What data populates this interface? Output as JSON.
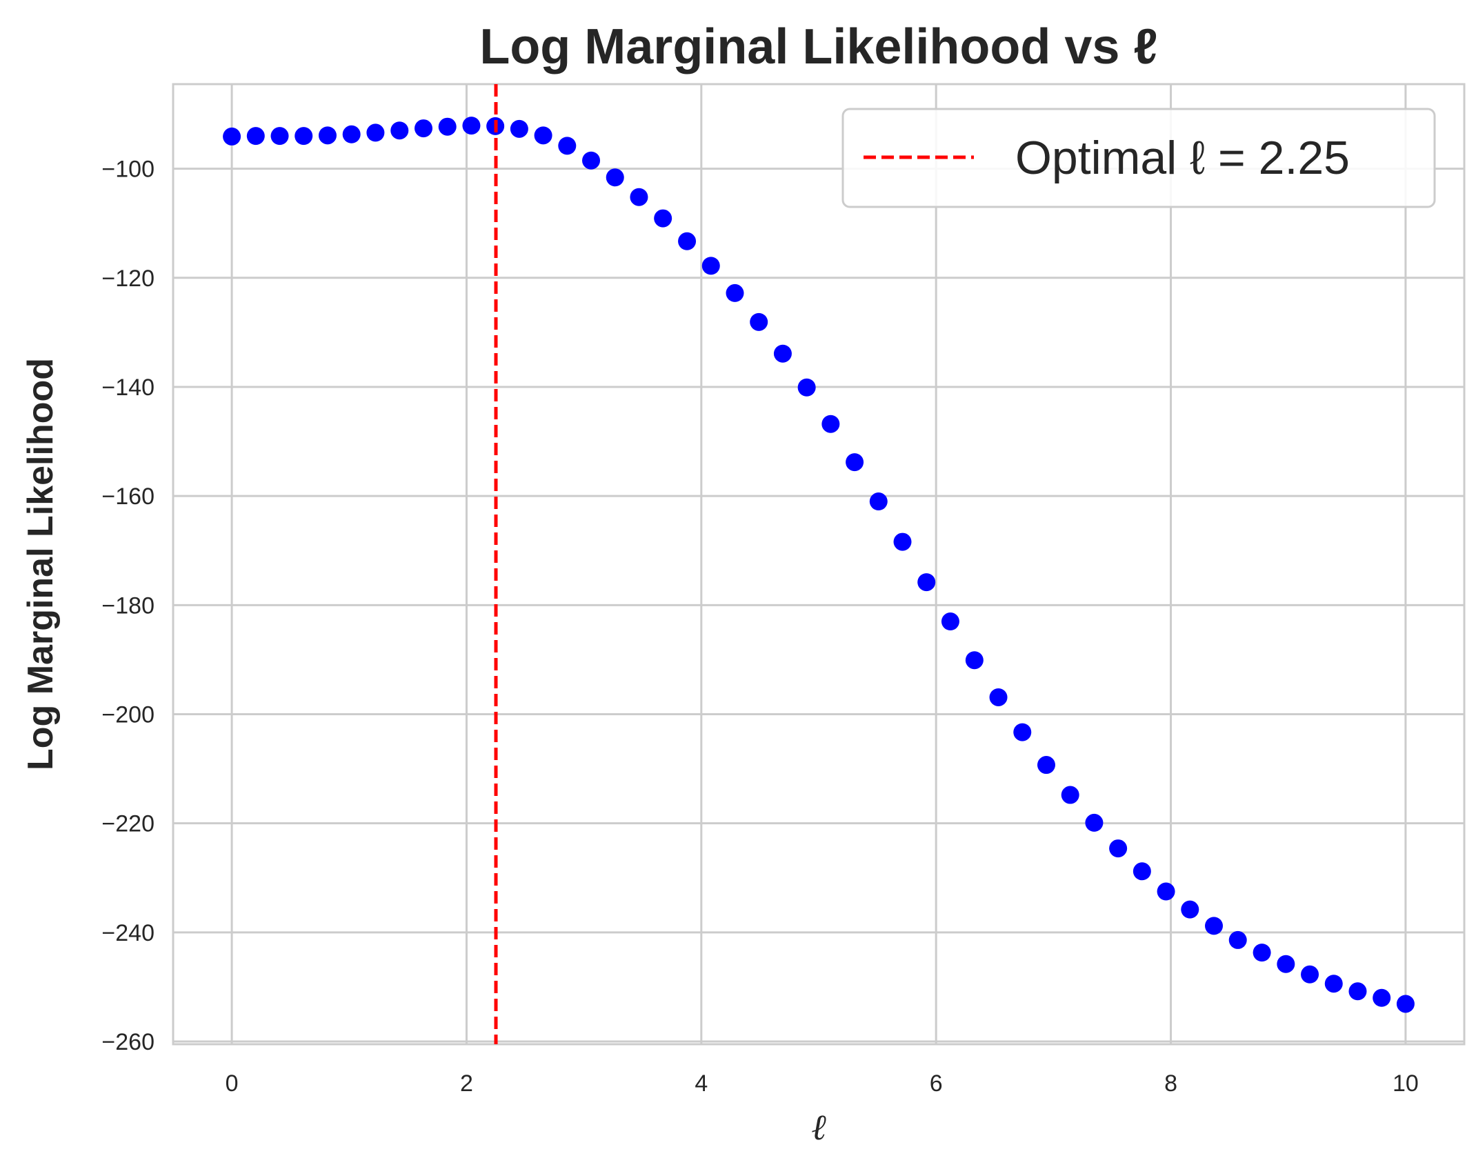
{
  "chart_data": {
    "type": "scatter",
    "title": "Log Marginal Likelihood vs ℓ",
    "xlabel": "ℓ",
    "ylabel": "Log Marginal Likelihood",
    "xlim": [
      -0.5,
      10.5
    ],
    "ylim": [
      -260.5,
      -84.5
    ],
    "xticks": [
      0,
      2,
      4,
      6,
      8,
      10
    ],
    "yticks": [
      -100,
      -120,
      -140,
      -160,
      -180,
      -200,
      -220,
      -240,
      -260
    ],
    "xtick_labels": [
      "0",
      "2",
      "4",
      "6",
      "8",
      "10"
    ],
    "ytick_labels": [
      "−100",
      "−120",
      "−140",
      "−160",
      "−180",
      "−200",
      "−220",
      "−240",
      "−260"
    ],
    "grid": true,
    "legend_position": "top-right",
    "series": [
      {
        "type": "scatter",
        "color": "#0000ff",
        "x": [
          0.0,
          0.204,
          0.408,
          0.612,
          0.816,
          1.02,
          1.224,
          1.429,
          1.633,
          1.837,
          2.041,
          2.245,
          2.449,
          2.653,
          2.857,
          3.061,
          3.265,
          3.469,
          3.673,
          3.878,
          4.082,
          4.286,
          4.49,
          4.694,
          4.898,
          5.102,
          5.306,
          5.51,
          5.714,
          5.918,
          6.122,
          6.327,
          6.531,
          6.735,
          6.939,
          7.143,
          7.347,
          7.551,
          7.755,
          7.959,
          8.163,
          8.367,
          8.571,
          8.776,
          8.98,
          9.184,
          9.388,
          9.592,
          9.796,
          10.0
        ],
        "y": [
          -94.1,
          -94.0,
          -94.0,
          -94.0,
          -93.9,
          -93.7,
          -93.4,
          -93.0,
          -92.6,
          -92.3,
          -92.1,
          -92.2,
          -92.7,
          -93.9,
          -95.8,
          -98.5,
          -101.6,
          -105.2,
          -109.1,
          -113.3,
          -117.8,
          -122.8,
          -128.1,
          -133.9,
          -140.1,
          -146.8,
          -153.8,
          -161.0,
          -168.4,
          -175.8,
          -183.0,
          -190.1,
          -196.9,
          -203.3,
          -209.3,
          -214.8,
          -219.9,
          -224.6,
          -228.8,
          -232.5,
          -235.8,
          -238.8,
          -241.4,
          -243.7,
          -245.8,
          -247.7,
          -249.4,
          -250.8,
          -252.0,
          -253.1
        ]
      },
      {
        "type": "vline",
        "name": "Optimal ℓ = 2.25",
        "x": 2.25,
        "color": "#ff0000",
        "style": "dashed"
      }
    ],
    "legend": [
      "Optimal ℓ = 2.25"
    ]
  }
}
